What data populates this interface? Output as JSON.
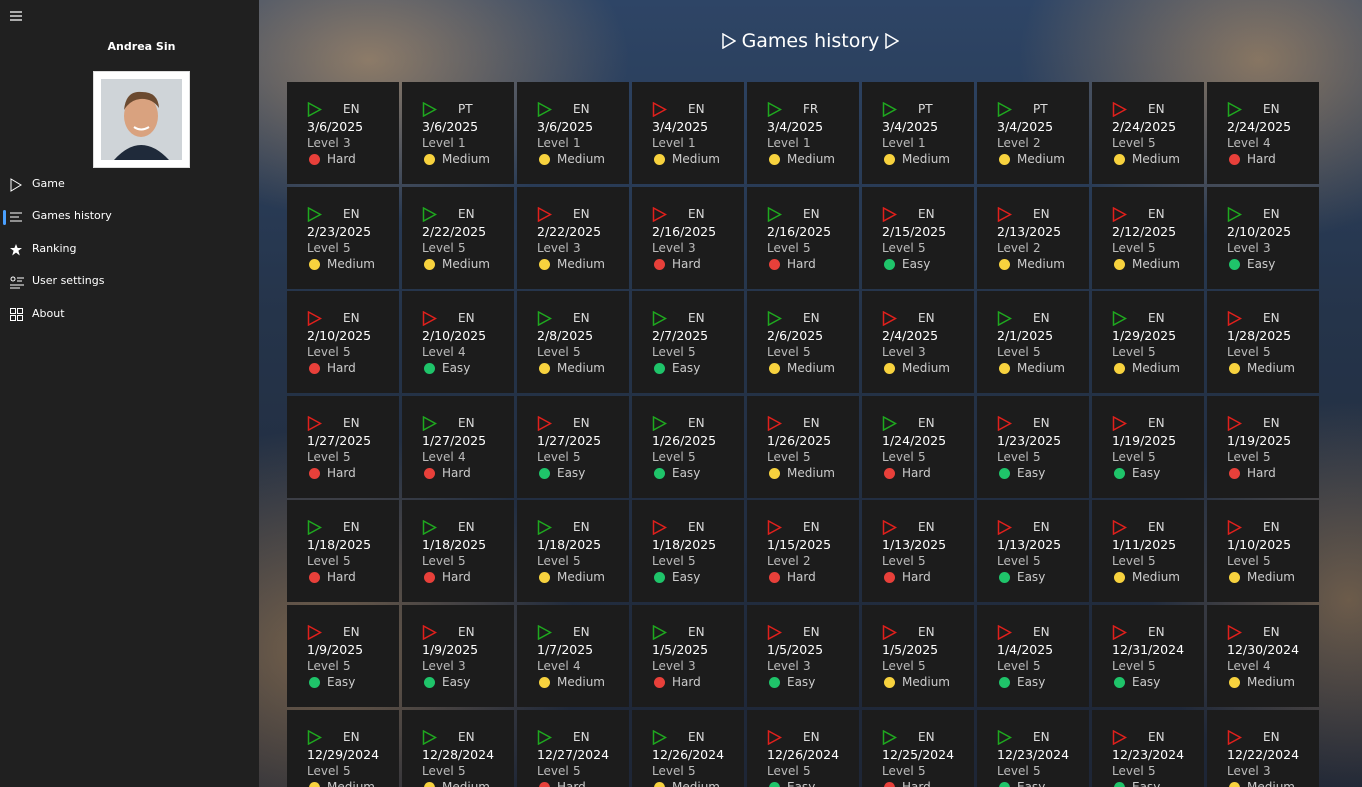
{
  "user": {
    "name": "Andrea Sin"
  },
  "nav": [
    "Game",
    "Games history",
    "Ranking",
    "User settings",
    "About"
  ],
  "header": {
    "title": "Games history"
  },
  "level_label": "Level",
  "difficulty_colors": {
    "Hard": "#e8403a",
    "Medium": "#f7d23e",
    "Easy": "#1fc46a"
  },
  "icon_colors": {
    "green": "#1fa81f",
    "red": "#e0201c"
  },
  "games": [
    {
      "icon": "green",
      "lang": "EN",
      "date": "3/6/2025",
      "level": 3,
      "difficulty": "Hard"
    },
    {
      "icon": "green",
      "lang": "PT",
      "date": "3/6/2025",
      "level": 1,
      "difficulty": "Medium"
    },
    {
      "icon": "green",
      "lang": "EN",
      "date": "3/6/2025",
      "level": 1,
      "difficulty": "Medium"
    },
    {
      "icon": "red",
      "lang": "EN",
      "date": "3/4/2025",
      "level": 1,
      "difficulty": "Medium"
    },
    {
      "icon": "green",
      "lang": "FR",
      "date": "3/4/2025",
      "level": 1,
      "difficulty": "Medium"
    },
    {
      "icon": "green",
      "lang": "PT",
      "date": "3/4/2025",
      "level": 1,
      "difficulty": "Medium"
    },
    {
      "icon": "green",
      "lang": "PT",
      "date": "3/4/2025",
      "level": 2,
      "difficulty": "Medium"
    },
    {
      "icon": "red",
      "lang": "EN",
      "date": "2/24/2025",
      "level": 5,
      "difficulty": "Medium"
    },
    {
      "icon": "green",
      "lang": "EN",
      "date": "2/24/2025",
      "level": 4,
      "difficulty": "Hard"
    },
    {
      "icon": "green",
      "lang": "EN",
      "date": "2/23/2025",
      "level": 5,
      "difficulty": "Medium"
    },
    {
      "icon": "green",
      "lang": "EN",
      "date": "2/22/2025",
      "level": 5,
      "difficulty": "Medium"
    },
    {
      "icon": "red",
      "lang": "EN",
      "date": "2/22/2025",
      "level": 3,
      "difficulty": "Medium"
    },
    {
      "icon": "red",
      "lang": "EN",
      "date": "2/16/2025",
      "level": 3,
      "difficulty": "Hard"
    },
    {
      "icon": "green",
      "lang": "EN",
      "date": "2/16/2025",
      "level": 5,
      "difficulty": "Hard"
    },
    {
      "icon": "red",
      "lang": "EN",
      "date": "2/15/2025",
      "level": 5,
      "difficulty": "Easy"
    },
    {
      "icon": "red",
      "lang": "EN",
      "date": "2/13/2025",
      "level": 2,
      "difficulty": "Medium"
    },
    {
      "icon": "red",
      "lang": "EN",
      "date": "2/12/2025",
      "level": 5,
      "difficulty": "Medium"
    },
    {
      "icon": "green",
      "lang": "EN",
      "date": "2/10/2025",
      "level": 3,
      "difficulty": "Easy"
    },
    {
      "icon": "red",
      "lang": "EN",
      "date": "2/10/2025",
      "level": 5,
      "difficulty": "Hard"
    },
    {
      "icon": "red",
      "lang": "EN",
      "date": "2/10/2025",
      "level": 4,
      "difficulty": "Easy"
    },
    {
      "icon": "green",
      "lang": "EN",
      "date": "2/8/2025",
      "level": 5,
      "difficulty": "Medium"
    },
    {
      "icon": "green",
      "lang": "EN",
      "date": "2/7/2025",
      "level": 5,
      "difficulty": "Easy"
    },
    {
      "icon": "green",
      "lang": "EN",
      "date": "2/6/2025",
      "level": 5,
      "difficulty": "Medium"
    },
    {
      "icon": "red",
      "lang": "EN",
      "date": "2/4/2025",
      "level": 3,
      "difficulty": "Medium"
    },
    {
      "icon": "green",
      "lang": "EN",
      "date": "2/1/2025",
      "level": 5,
      "difficulty": "Medium"
    },
    {
      "icon": "green",
      "lang": "EN",
      "date": "1/29/2025",
      "level": 5,
      "difficulty": "Medium"
    },
    {
      "icon": "red",
      "lang": "EN",
      "date": "1/28/2025",
      "level": 5,
      "difficulty": "Medium"
    },
    {
      "icon": "red",
      "lang": "EN",
      "date": "1/27/2025",
      "level": 5,
      "difficulty": "Hard"
    },
    {
      "icon": "green",
      "lang": "EN",
      "date": "1/27/2025",
      "level": 4,
      "difficulty": "Hard"
    },
    {
      "icon": "red",
      "lang": "EN",
      "date": "1/27/2025",
      "level": 5,
      "difficulty": "Easy"
    },
    {
      "icon": "green",
      "lang": "EN",
      "date": "1/26/2025",
      "level": 5,
      "difficulty": "Easy"
    },
    {
      "icon": "red",
      "lang": "EN",
      "date": "1/26/2025",
      "level": 5,
      "difficulty": "Medium"
    },
    {
      "icon": "green",
      "lang": "EN",
      "date": "1/24/2025",
      "level": 5,
      "difficulty": "Hard"
    },
    {
      "icon": "red",
      "lang": "EN",
      "date": "1/23/2025",
      "level": 5,
      "difficulty": "Easy"
    },
    {
      "icon": "red",
      "lang": "EN",
      "date": "1/19/2025",
      "level": 5,
      "difficulty": "Easy"
    },
    {
      "icon": "red",
      "lang": "EN",
      "date": "1/19/2025",
      "level": 5,
      "difficulty": "Hard"
    },
    {
      "icon": "green",
      "lang": "EN",
      "date": "1/18/2025",
      "level": 5,
      "difficulty": "Hard"
    },
    {
      "icon": "green",
      "lang": "EN",
      "date": "1/18/2025",
      "level": 5,
      "difficulty": "Hard"
    },
    {
      "icon": "green",
      "lang": "EN",
      "date": "1/18/2025",
      "level": 5,
      "difficulty": "Medium"
    },
    {
      "icon": "red",
      "lang": "EN",
      "date": "1/18/2025",
      "level": 5,
      "difficulty": "Easy"
    },
    {
      "icon": "red",
      "lang": "EN",
      "date": "1/15/2025",
      "level": 2,
      "difficulty": "Hard"
    },
    {
      "icon": "red",
      "lang": "EN",
      "date": "1/13/2025",
      "level": 5,
      "difficulty": "Hard"
    },
    {
      "icon": "red",
      "lang": "EN",
      "date": "1/13/2025",
      "level": 5,
      "difficulty": "Easy"
    },
    {
      "icon": "red",
      "lang": "EN",
      "date": "1/11/2025",
      "level": 5,
      "difficulty": "Medium"
    },
    {
      "icon": "red",
      "lang": "EN",
      "date": "1/10/2025",
      "level": 5,
      "difficulty": "Medium"
    },
    {
      "icon": "red",
      "lang": "EN",
      "date": "1/9/2025",
      "level": 5,
      "difficulty": "Easy"
    },
    {
      "icon": "red",
      "lang": "EN",
      "date": "1/9/2025",
      "level": 3,
      "difficulty": "Easy"
    },
    {
      "icon": "green",
      "lang": "EN",
      "date": "1/7/2025",
      "level": 4,
      "difficulty": "Medium"
    },
    {
      "icon": "green",
      "lang": "EN",
      "date": "1/5/2025",
      "level": 3,
      "difficulty": "Hard"
    },
    {
      "icon": "red",
      "lang": "EN",
      "date": "1/5/2025",
      "level": 3,
      "difficulty": "Easy"
    },
    {
      "icon": "red",
      "lang": "EN",
      "date": "1/5/2025",
      "level": 5,
      "difficulty": "Medium"
    },
    {
      "icon": "red",
      "lang": "EN",
      "date": "1/4/2025",
      "level": 5,
      "difficulty": "Easy"
    },
    {
      "icon": "red",
      "lang": "EN",
      "date": "12/31/2024",
      "level": 5,
      "difficulty": "Easy"
    },
    {
      "icon": "red",
      "lang": "EN",
      "date": "12/30/2024",
      "level": 4,
      "difficulty": "Medium"
    },
    {
      "icon": "green",
      "lang": "EN",
      "date": "12/29/2024",
      "level": 5,
      "difficulty": "Medium"
    },
    {
      "icon": "green",
      "lang": "EN",
      "date": "12/28/2024",
      "level": 5,
      "difficulty": "Medium"
    },
    {
      "icon": "green",
      "lang": "EN",
      "date": "12/27/2024",
      "level": 5,
      "difficulty": "Hard"
    },
    {
      "icon": "green",
      "lang": "EN",
      "date": "12/26/2024",
      "level": 5,
      "difficulty": "Medium"
    },
    {
      "icon": "red",
      "lang": "EN",
      "date": "12/26/2024",
      "level": 5,
      "difficulty": "Easy"
    },
    {
      "icon": "green",
      "lang": "EN",
      "date": "12/25/2024",
      "level": 5,
      "difficulty": "Hard"
    },
    {
      "icon": "green",
      "lang": "EN",
      "date": "12/23/2024",
      "level": 5,
      "difficulty": "Easy"
    },
    {
      "icon": "red",
      "lang": "EN",
      "date": "12/23/2024",
      "level": 5,
      "difficulty": "Easy"
    },
    {
      "icon": "red",
      "lang": "EN",
      "date": "12/22/2024",
      "level": 3,
      "difficulty": "Medium"
    }
  ]
}
